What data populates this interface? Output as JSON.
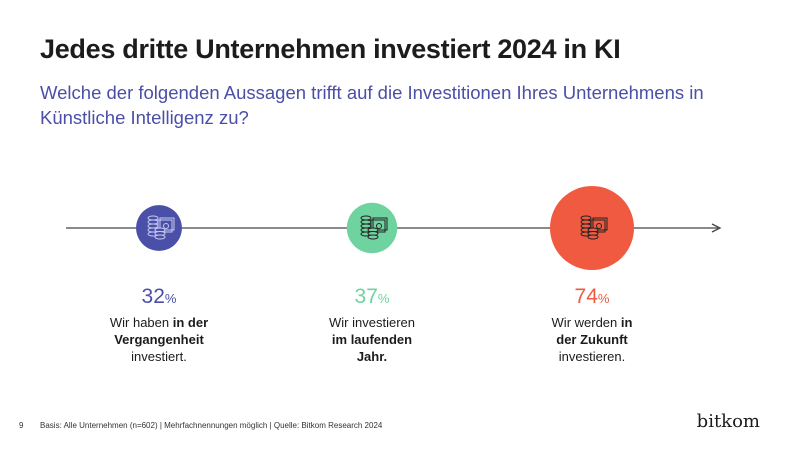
{
  "title": "Jedes dritte Unternehmen investiert 2024 in KI",
  "subtitle": "Welche der folgenden Aussagen trifft auf die Investitionen Ihres Unternehmens in Künstliche Intelligenz zu?",
  "chart_data": {
    "type": "bar",
    "categories": [
      "Vergangenheit",
      "Laufendes Jahr",
      "Zukunft"
    ],
    "values": [
      32,
      37,
      74
    ],
    "unit": "%",
    "colors": [
      "#4a4fa8",
      "#6fd3a0",
      "#ef5a40"
    ],
    "items": [
      {
        "value": "32",
        "unit": "%",
        "pre": "Wir haben ",
        "bold": "in der Vergangenheit",
        "post": " investiert.",
        "color": "#4a4fa8",
        "icon": "coins-money-icon"
      },
      {
        "value": "37",
        "unit": "%",
        "pre": "Wir investieren ",
        "bold": "im laufenden Jahr.",
        "post": "",
        "color": "#6fd3a0",
        "icon": "coins-money-icon"
      },
      {
        "value": "74",
        "unit": "%",
        "pre": "Wir werden ",
        "bold": "in der Zukunft",
        "post": " investieren.",
        "color": "#ef5a40",
        "icon": "coins-money-icon"
      }
    ]
  },
  "footer": {
    "page": "9",
    "source": "Basis: Alle Unternehmen (n=602) | Mehrfachnennungen möglich | Quelle: Bitkom Research 2024"
  },
  "logo": "bitkom"
}
